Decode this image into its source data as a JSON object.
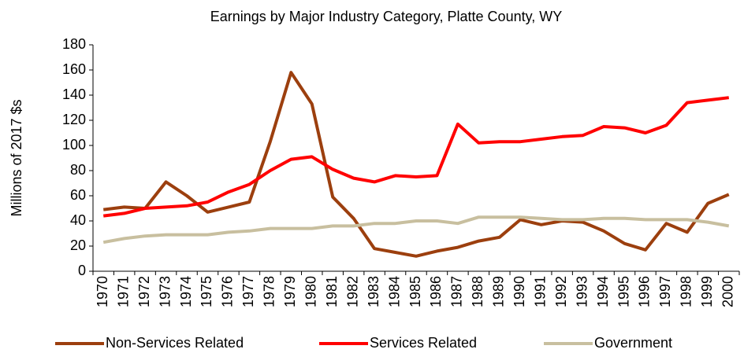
{
  "chart_data": {
    "type": "line",
    "title": "Earnings by Major Industry Category, Platte County, WY",
    "y_label": "Millions of 2017 $s",
    "categories": [
      "1970",
      "1971",
      "1972",
      "1973",
      "1974",
      "1975",
      "1976",
      "1977",
      "1978",
      "1979",
      "1980",
      "1981",
      "1982",
      "1983",
      "1984",
      "1985",
      "1986",
      "1987",
      "1988",
      "1989",
      "1990",
      "1991",
      "1992",
      "1993",
      "1994",
      "1995",
      "1996",
      "1997",
      "1998",
      "1999",
      "2000"
    ],
    "series": [
      {
        "name": "Non-Services Related",
        "color": "#9c3f0e",
        "values": [
          49,
          51,
          50,
          71,
          60,
          47,
          51,
          55,
          103,
          158,
          133,
          59,
          42,
          18,
          15,
          12,
          16,
          19,
          24,
          27,
          41,
          37,
          40,
          39,
          32,
          22,
          17,
          38,
          31,
          54,
          61
        ]
      },
      {
        "name": "Services Related",
        "color": "#ff0000",
        "values": [
          44,
          46,
          50,
          51,
          52,
          55,
          63,
          69,
          80,
          89,
          91,
          81,
          74,
          71,
          76,
          75,
          76,
          117,
          102,
          103,
          103,
          105,
          107,
          108,
          115,
          114,
          110,
          116,
          134,
          136,
          138
        ]
      },
      {
        "name": "Government",
        "color": "#c8bf9f",
        "values": [
          23,
          26,
          28,
          29,
          29,
          29,
          31,
          32,
          34,
          34,
          34,
          36,
          36,
          38,
          38,
          40,
          40,
          38,
          43,
          43,
          43,
          42,
          41,
          41,
          42,
          42,
          41,
          41,
          41,
          39,
          36
        ]
      }
    ],
    "ylim": [
      0,
      180
    ],
    "yticks": [
      0,
      20,
      40,
      60,
      80,
      100,
      120,
      140,
      160,
      180
    ],
    "grid": false
  }
}
